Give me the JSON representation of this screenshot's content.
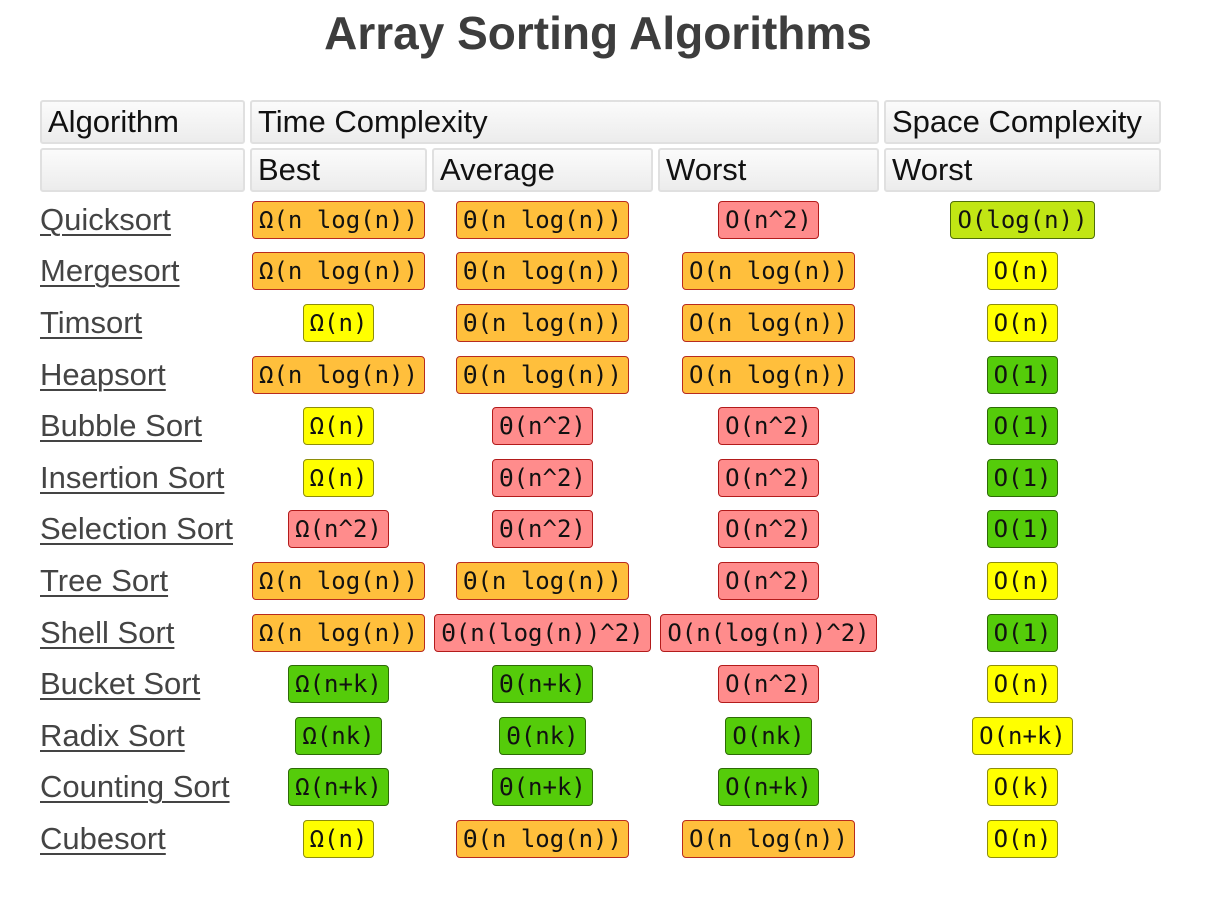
{
  "title": "Array Sorting Algorithms",
  "header": {
    "algorithm": "Algorithm",
    "time_complexity": "Time Complexity",
    "space_complexity": "Space Complexity",
    "best": "Best",
    "average": "Average",
    "worst": "Worst",
    "space_worst": "Worst"
  },
  "colors": {
    "orange": "#ffbf3c",
    "red": "#ff8c8c",
    "yellow": "#ffff00",
    "green": "#55cc0a",
    "yellow-green": "#c1e614"
  },
  "rows": [
    {
      "name": "Quicksort",
      "best": {
        "text": "Ω(n log(n))",
        "color": "orange"
      },
      "average": {
        "text": "Θ(n log(n))",
        "color": "orange"
      },
      "worst": {
        "text": "O(n^2)",
        "color": "red"
      },
      "space": {
        "text": "O(log(n))",
        "color": "yellow-green"
      }
    },
    {
      "name": "Mergesort",
      "best": {
        "text": "Ω(n log(n))",
        "color": "orange"
      },
      "average": {
        "text": "Θ(n log(n))",
        "color": "orange"
      },
      "worst": {
        "text": "O(n log(n))",
        "color": "orange"
      },
      "space": {
        "text": "O(n)",
        "color": "yellow"
      }
    },
    {
      "name": "Timsort",
      "best": {
        "text": "Ω(n)",
        "color": "yellow"
      },
      "average": {
        "text": "Θ(n log(n))",
        "color": "orange"
      },
      "worst": {
        "text": "O(n log(n))",
        "color": "orange"
      },
      "space": {
        "text": "O(n)",
        "color": "yellow"
      }
    },
    {
      "name": "Heapsort",
      "best": {
        "text": "Ω(n log(n))",
        "color": "orange"
      },
      "average": {
        "text": "Θ(n log(n))",
        "color": "orange"
      },
      "worst": {
        "text": "O(n log(n))",
        "color": "orange"
      },
      "space": {
        "text": "O(1)",
        "color": "green"
      }
    },
    {
      "name": "Bubble Sort",
      "best": {
        "text": "Ω(n)",
        "color": "yellow"
      },
      "average": {
        "text": "Θ(n^2)",
        "color": "red"
      },
      "worst": {
        "text": "O(n^2)",
        "color": "red"
      },
      "space": {
        "text": "O(1)",
        "color": "green"
      }
    },
    {
      "name": "Insertion Sort",
      "best": {
        "text": "Ω(n)",
        "color": "yellow"
      },
      "average": {
        "text": "Θ(n^2)",
        "color": "red"
      },
      "worst": {
        "text": "O(n^2)",
        "color": "red"
      },
      "space": {
        "text": "O(1)",
        "color": "green"
      }
    },
    {
      "name": "Selection Sort",
      "best": {
        "text": "Ω(n^2)",
        "color": "red"
      },
      "average": {
        "text": "Θ(n^2)",
        "color": "red"
      },
      "worst": {
        "text": "O(n^2)",
        "color": "red"
      },
      "space": {
        "text": "O(1)",
        "color": "green"
      }
    },
    {
      "name": "Tree Sort",
      "best": {
        "text": "Ω(n log(n))",
        "color": "orange"
      },
      "average": {
        "text": "Θ(n log(n))",
        "color": "orange"
      },
      "worst": {
        "text": "O(n^2)",
        "color": "red"
      },
      "space": {
        "text": "O(n)",
        "color": "yellow"
      }
    },
    {
      "name": "Shell Sort",
      "best": {
        "text": "Ω(n log(n))",
        "color": "orange"
      },
      "average": {
        "text": "Θ(n(log(n))^2)",
        "color": "red"
      },
      "worst": {
        "text": "O(n(log(n))^2)",
        "color": "red"
      },
      "space": {
        "text": "O(1)",
        "color": "green"
      }
    },
    {
      "name": "Bucket Sort",
      "best": {
        "text": "Ω(n+k)",
        "color": "green"
      },
      "average": {
        "text": "Θ(n+k)",
        "color": "green"
      },
      "worst": {
        "text": "O(n^2)",
        "color": "red"
      },
      "space": {
        "text": "O(n)",
        "color": "yellow"
      }
    },
    {
      "name": "Radix Sort",
      "best": {
        "text": "Ω(nk)",
        "color": "green"
      },
      "average": {
        "text": "Θ(nk)",
        "color": "green"
      },
      "worst": {
        "text": "O(nk)",
        "color": "green"
      },
      "space": {
        "text": "O(n+k)",
        "color": "yellow"
      }
    },
    {
      "name": "Counting Sort",
      "best": {
        "text": "Ω(n+k)",
        "color": "green"
      },
      "average": {
        "text": "Θ(n+k)",
        "color": "green"
      },
      "worst": {
        "text": "O(n+k)",
        "color": "green"
      },
      "space": {
        "text": "O(k)",
        "color": "yellow"
      }
    },
    {
      "name": "Cubesort",
      "best": {
        "text": "Ω(n)",
        "color": "yellow"
      },
      "average": {
        "text": "Θ(n log(n))",
        "color": "orange"
      },
      "worst": {
        "text": "O(n log(n))",
        "color": "orange"
      },
      "space": {
        "text": "O(n)",
        "color": "yellow"
      }
    }
  ]
}
